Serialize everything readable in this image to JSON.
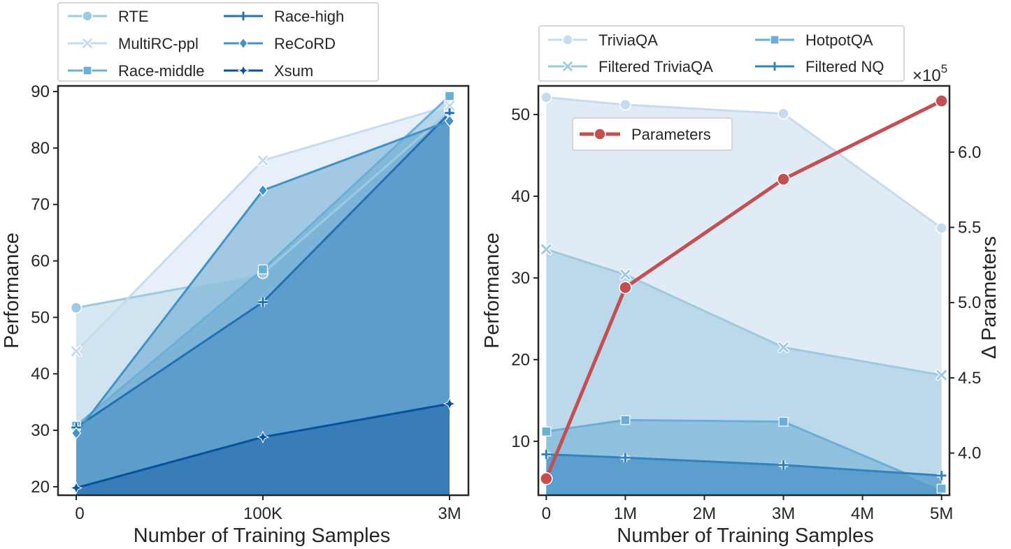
{
  "chart_data": [
    {
      "type": "area",
      "xlabel": "Number of Training Samples",
      "ylabel": "Performance",
      "categories": [
        "0",
        "100K",
        "3M"
      ],
      "ylim": [
        18.5,
        91
      ],
      "yticks": [
        20,
        30,
        40,
        50,
        60,
        70,
        80,
        90
      ],
      "series": [
        {
          "name": "RTE",
          "marker": "circle",
          "color": "#9ecae1",
          "values": [
            51.7,
            57.8,
            86.5
          ]
        },
        {
          "name": "MultiRC-ppl",
          "marker": "x",
          "color": "#c6dbef",
          "values": [
            44.0,
            77.8,
            87.5
          ]
        },
        {
          "name": "Race-middle",
          "marker": "square",
          "color": "#6baed6",
          "values": [
            30.8,
            58.5,
            89.2
          ]
        },
        {
          "name": "Race-high",
          "marker": "plus",
          "color": "#2171b5",
          "values": [
            30.5,
            52.7,
            86.2
          ]
        },
        {
          "name": "ReCoRD",
          "marker": "diamond",
          "color": "#4292c6",
          "values": [
            29.5,
            72.5,
            84.8
          ]
        },
        {
          "name": "Xsum",
          "marker": "star4",
          "color": "#08519c",
          "values": [
            19.8,
            28.8,
            34.7
          ]
        }
      ]
    },
    {
      "type": "area",
      "xlabel": "Number of Training Samples",
      "ylabel": "Performance",
      "y2label": "Δ Parameters",
      "y2multiplier": "×10",
      "y2exponent": "5",
      "xticks": [
        "0",
        "1M",
        "2M",
        "3M",
        "4M",
        "5M"
      ],
      "xlim": [
        -0.1,
        5.1
      ],
      "ylim": [
        3.4,
        53.5
      ],
      "yticks": [
        10,
        20,
        30,
        40,
        50
      ],
      "y2lim": [
        3.72,
        6.44
      ],
      "y2ticks": [
        "4.0",
        "4.5",
        "5.0",
        "5.5",
        "6.0"
      ],
      "y2tickvalues": [
        4.0,
        4.5,
        5.0,
        5.5,
        6.0
      ],
      "series": [
        {
          "name": "TriviaQA",
          "marker": "circle",
          "color": "#c6dbef",
          "x": [
            0,
            1,
            3,
            5
          ],
          "values": [
            52.1,
            51.2,
            50.1,
            36.1
          ]
        },
        {
          "name": "Filtered TriviaQA",
          "marker": "x",
          "color": "#9ecae1",
          "x": [
            0,
            1,
            3,
            5
          ],
          "values": [
            33.5,
            30.4,
            21.5,
            18.1
          ]
        },
        {
          "name": "HotpotQA",
          "marker": "square",
          "color": "#6baed6",
          "x": [
            0,
            1,
            3,
            5
          ],
          "values": [
            11.2,
            12.6,
            12.4,
            4.2
          ]
        },
        {
          "name": "Filtered NQ",
          "marker": "plus",
          "color": "#3182bd",
          "x": [
            0,
            1,
            3,
            5
          ],
          "values": [
            8.4,
            8.0,
            7.1,
            5.8
          ]
        }
      ],
      "secondary_series": {
        "name": "Parameters",
        "marker": "circle",
        "color": "#c44e52",
        "x": [
          0,
          1,
          3,
          5
        ],
        "values": [
          3.83,
          5.1,
          5.82,
          6.34
        ]
      }
    }
  ]
}
